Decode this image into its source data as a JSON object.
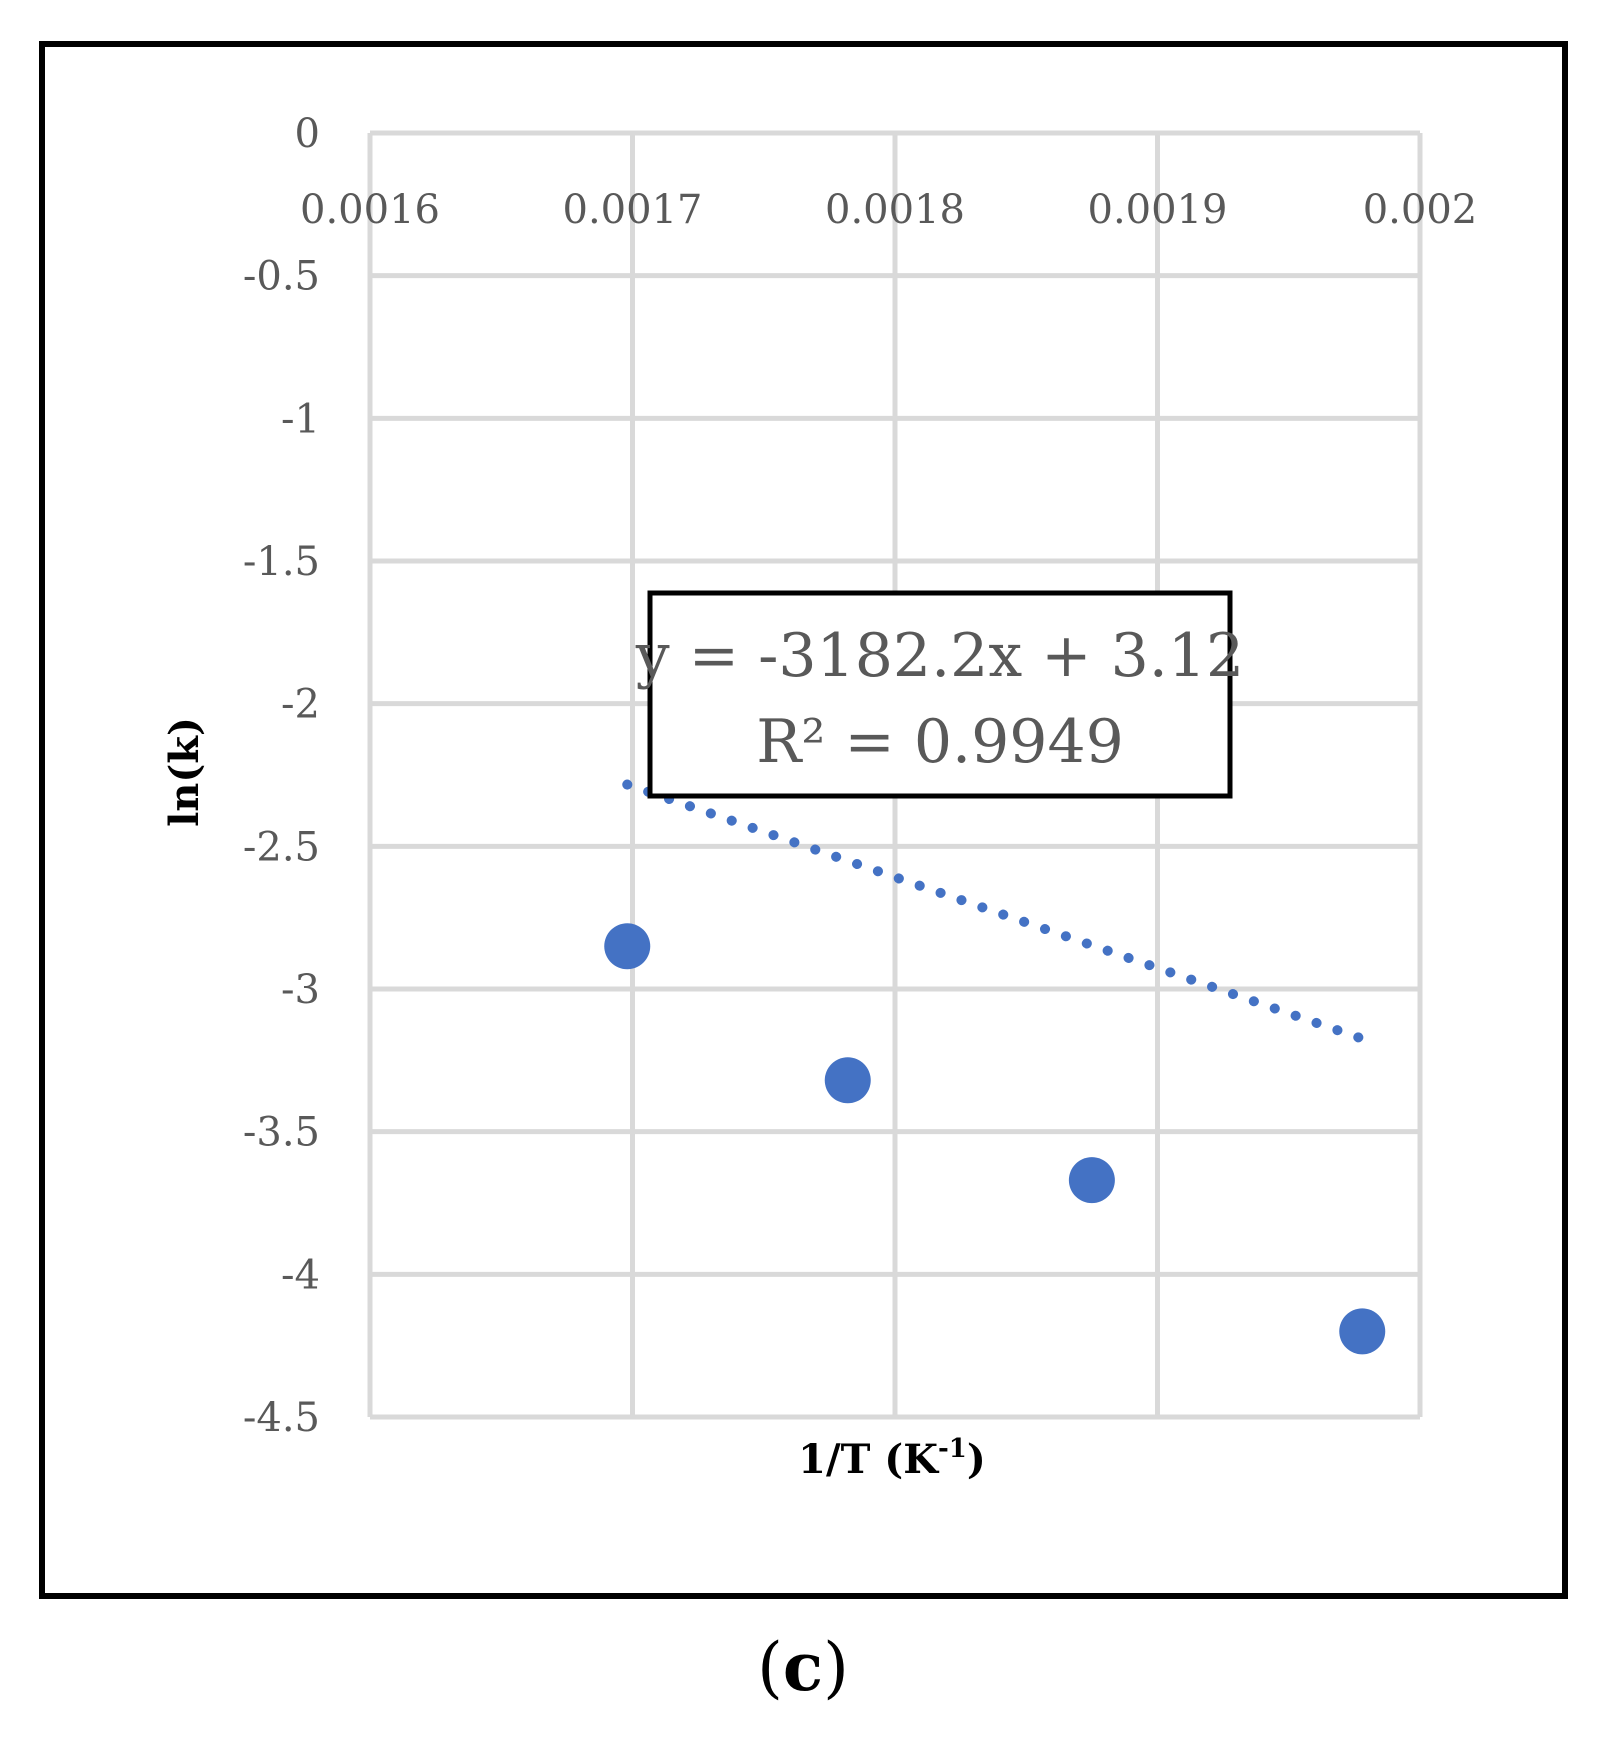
{
  "chart_data": {
    "type": "scatter",
    "title": "",
    "xlabel_main": "1/T (K",
    "xlabel_sup": "-1",
    "xlabel_close": ")",
    "ylabel": "ln(k)",
    "xlim": [
      0.0016,
      0.002
    ],
    "ylim": [
      -4.5,
      0
    ],
    "x_ticks": [
      0.0016,
      0.0017,
      0.0018,
      0.0019,
      0.002
    ],
    "x_tick_labels": [
      "0.0016",
      "0.0017",
      "0.0018",
      "0.0019",
      "0.002"
    ],
    "y_ticks": [
      0,
      -0.5,
      -1,
      -1.5,
      -2,
      -2.5,
      -3,
      -3.5,
      -4,
      -4.5
    ],
    "y_tick_labels": [
      "0",
      "-0.5",
      "-1",
      "-1.5",
      "-2",
      "-2.5",
      "-3",
      "-3.5",
      "-4",
      "-4.5"
    ],
    "grid": true,
    "series": [
      {
        "x": [
          0.001698,
          0.001782,
          0.001875,
          0.001978
        ],
        "y": [
          -2.85,
          -3.32,
          -3.67,
          -4.2
        ],
        "color": "#4472C4"
      }
    ],
    "trendline": {
      "style": "dotted",
      "color": "#4472C4",
      "slope": -3182.2,
      "intercept": 3.12
    },
    "annotation": {
      "equation": "y = -3182.2x + 3.12",
      "r_squared": "R² = 0.9949"
    }
  },
  "panel_label": {
    "open": "(",
    "letter": "c",
    "close": ")"
  }
}
